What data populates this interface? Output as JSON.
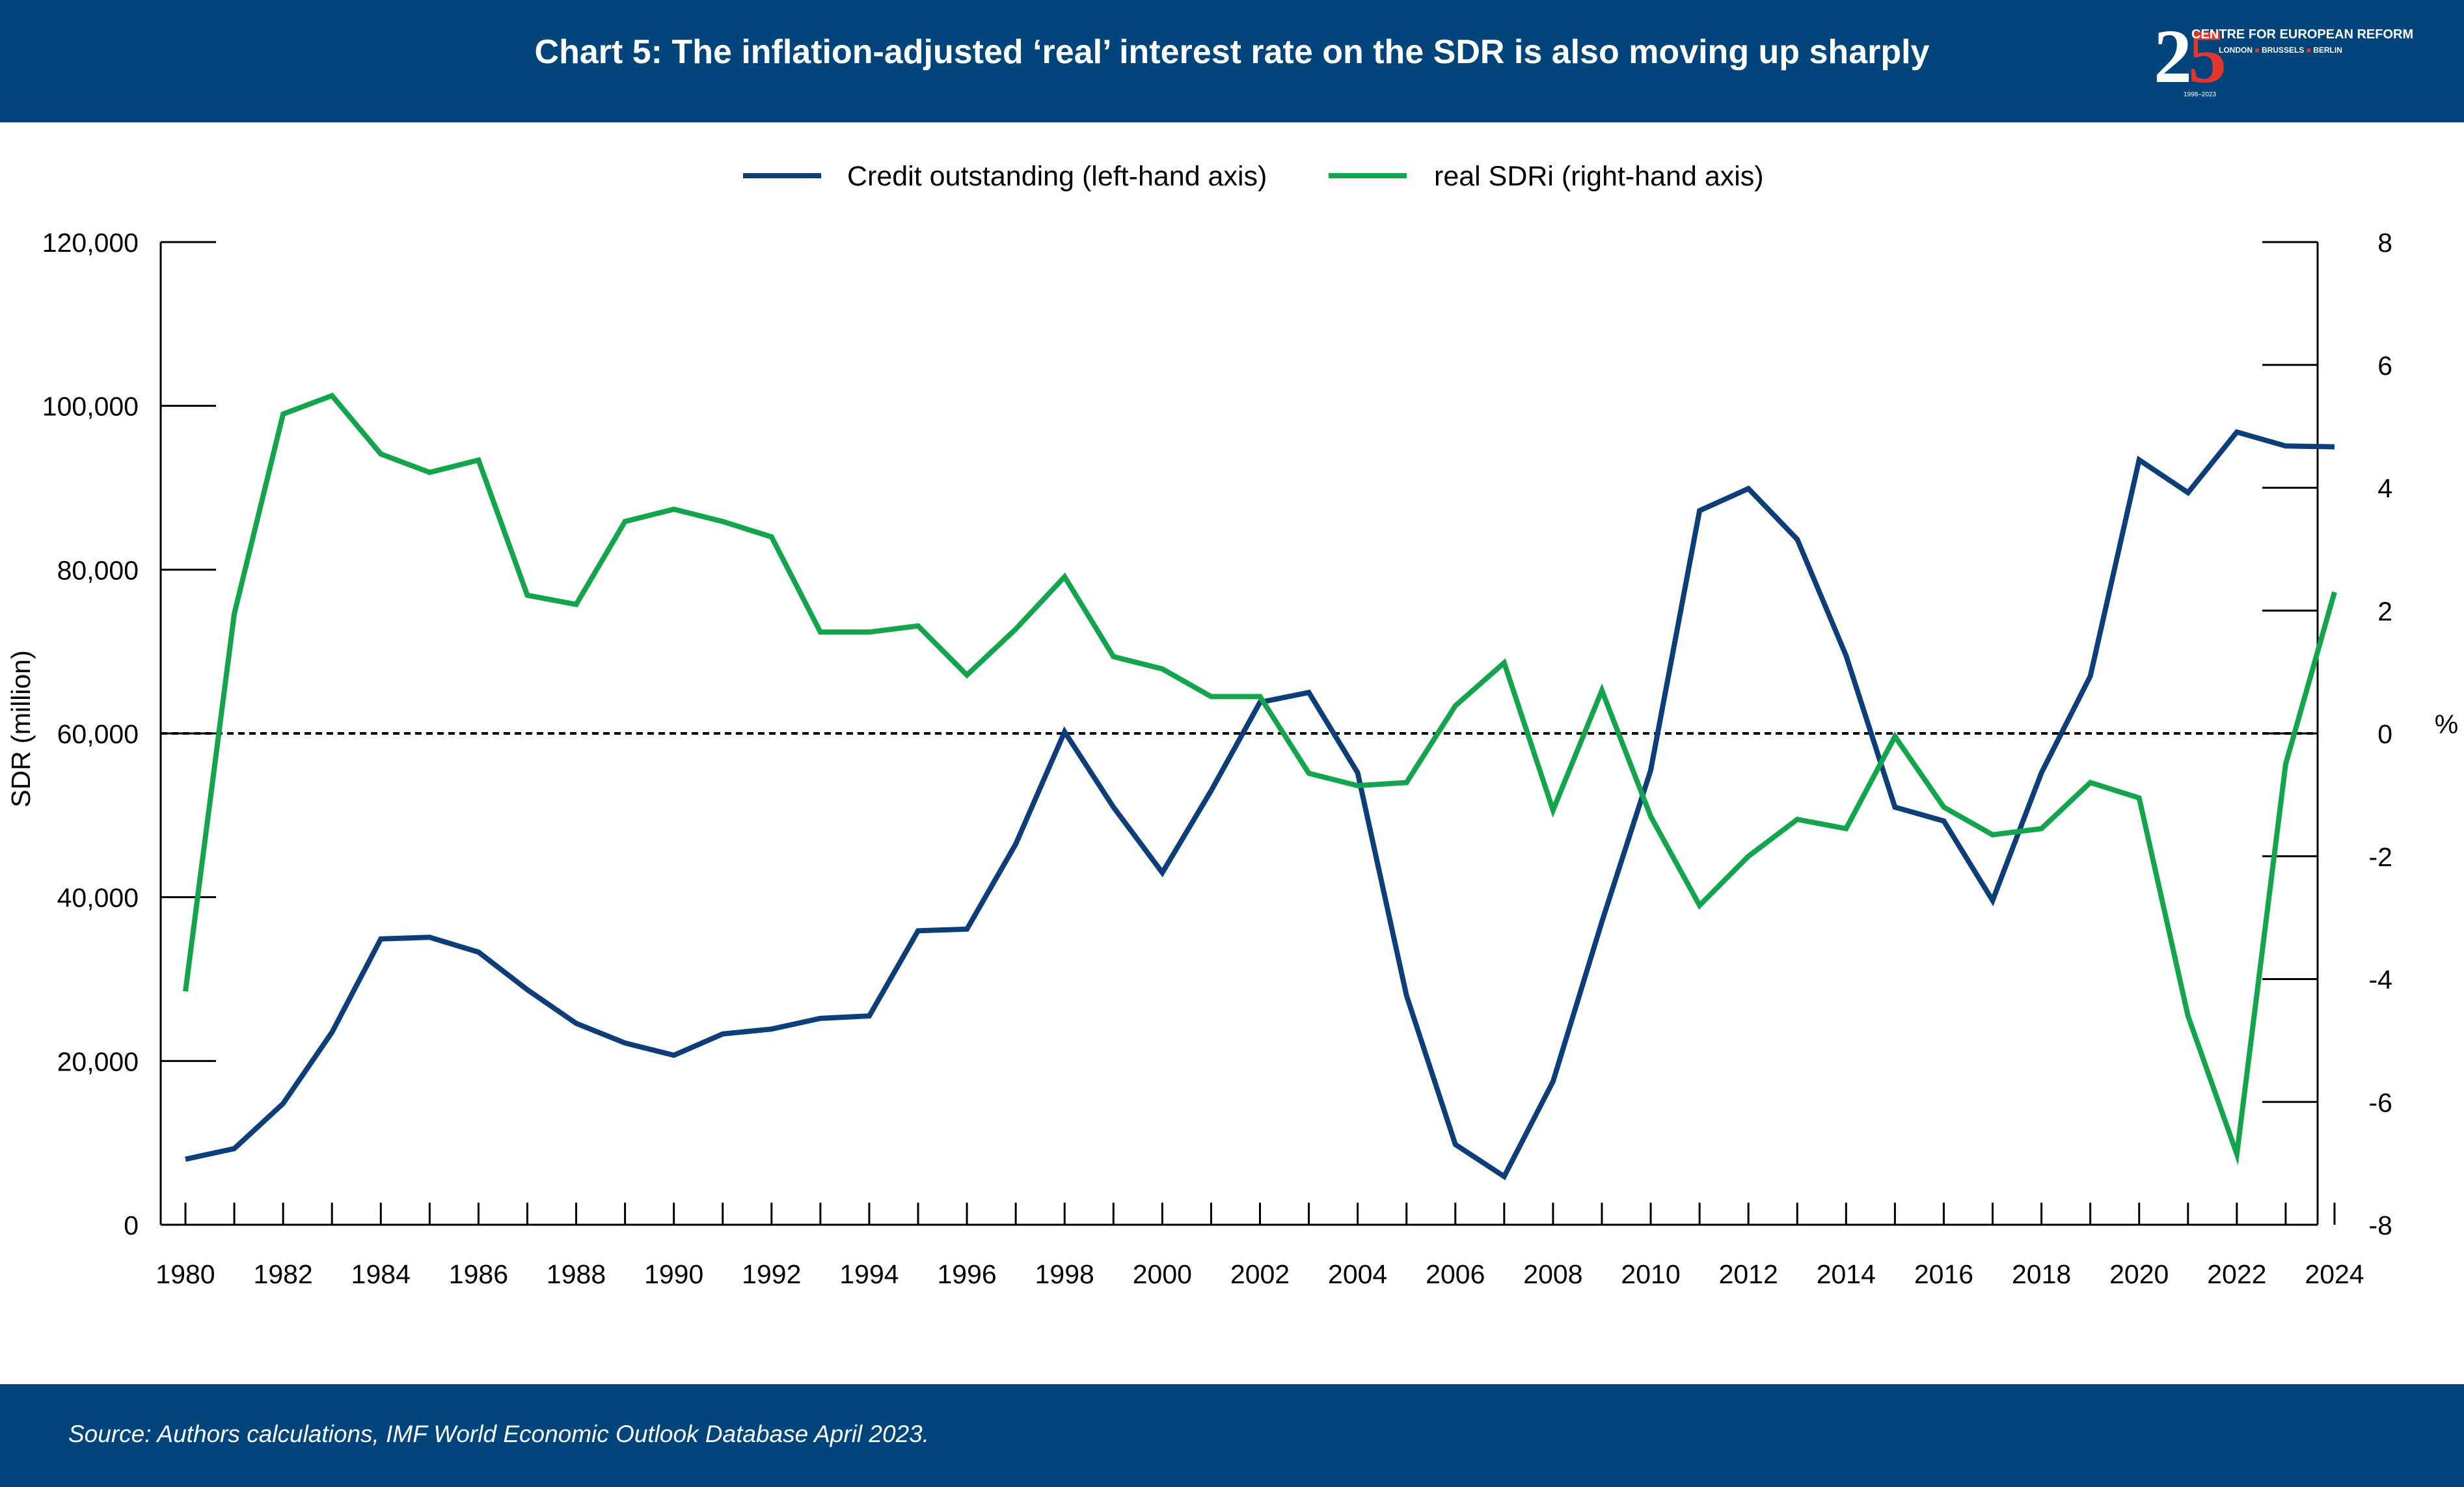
{
  "header": {
    "title": "Chart 5: The inflation-adjusted ‘real’ interest rate on the SDR is also moving up sharply",
    "logo": {
      "number_2": "2",
      "number_5": "5",
      "name": "CENTRE FOR EUROPEAN REFORM",
      "city_1": "LONDON",
      "city_2": "BRUSSELS",
      "city_3": "BERLIN",
      "separator": "■",
      "years": "1998–2023",
      "accent_color": "#e0362c"
    }
  },
  "footer": {
    "source": "Source: Authors calculations, IMF World Economic Outlook Database April 2023."
  },
  "colors": {
    "banner": "#00447c",
    "credit_line": "#0c3f7a",
    "sdr_line": "#12a54b",
    "axis": "#000000"
  },
  "chart_data": {
    "type": "line",
    "title": "",
    "xlabel": "",
    "ylabel_left": "SDR (million)",
    "ylabel_right": "%",
    "ylim_left": [
      0,
      120000
    ],
    "ylim_right": [
      -8,
      8
    ],
    "xlim": [
      1980,
      2024
    ],
    "x_tick_labels": [
      "1980",
      "1982",
      "1984",
      "1986",
      "1988",
      "1990",
      "1992",
      "1994",
      "1996",
      "1998",
      "2000",
      "2002",
      "2004",
      "2006",
      "2008",
      "2010",
      "2012",
      "2014",
      "2016",
      "2018",
      "2020",
      "2022",
      "2024"
    ],
    "y_left_tick_labels": [
      "0",
      "20,000",
      "40,000",
      "60,000",
      "80,000",
      "100,000",
      "120,000"
    ],
    "y_right_tick_labels": [
      "-8",
      "-6",
      "-4",
      "-2",
      "0",
      "2",
      "4",
      "6",
      "8"
    ],
    "legend_position": "top-center",
    "zero_reference_line": "dotted at 0 on right-hand axis",
    "grid": false,
    "x": [
      1980,
      1981,
      1982,
      1983,
      1984,
      1985,
      1986,
      1987,
      1988,
      1989,
      1990,
      1991,
      1992,
      1993,
      1994,
      1995,
      1996,
      1997,
      1998,
      1999,
      2000,
      2001,
      2002,
      2003,
      2004,
      2005,
      2006,
      2007,
      2008,
      2009,
      2010,
      2011,
      2012,
      2013,
      2014,
      2015,
      2016,
      2017,
      2018,
      2019,
      2020,
      2021,
      2022,
      2023,
      2024
    ],
    "series": [
      {
        "name": "Credit outstanding (left-hand axis)",
        "axis": "left",
        "values": [
          8000,
          9300,
          14800,
          23500,
          34900,
          35100,
          33300,
          28700,
          24600,
          22200,
          20700,
          23300,
          23900,
          25200,
          25500,
          35900,
          36100,
          46500,
          60200,
          51000,
          43000,
          53000,
          63800,
          65000,
          55200,
          28000,
          9800,
          5900,
          17500,
          37000,
          55500,
          87200,
          89900,
          83700,
          69500,
          51000,
          49300,
          39600,
          55200,
          67000,
          93400,
          89400,
          96800,
          95100,
          95000
        ]
      },
      {
        "name": "real SDRi (right-hand axis)",
        "axis": "right",
        "values": [
          -4.2,
          1.95,
          5.2,
          5.5,
          4.55,
          4.25,
          4.45,
          2.25,
          2.1,
          3.45,
          3.65,
          3.45,
          3.2,
          1.65,
          1.65,
          1.75,
          0.95,
          1.7,
          2.55,
          1.25,
          1.05,
          0.6,
          0.6,
          -0.65,
          -0.85,
          -0.8,
          0.45,
          1.15,
          -1.25,
          0.7,
          -1.35,
          -2.8,
          -2.0,
          -1.4,
          -1.55,
          -0.05,
          -1.2,
          -1.65,
          -1.55,
          -0.8,
          -1.05,
          -4.6,
          -6.85,
          -0.5,
          2.3
        ]
      }
    ]
  }
}
